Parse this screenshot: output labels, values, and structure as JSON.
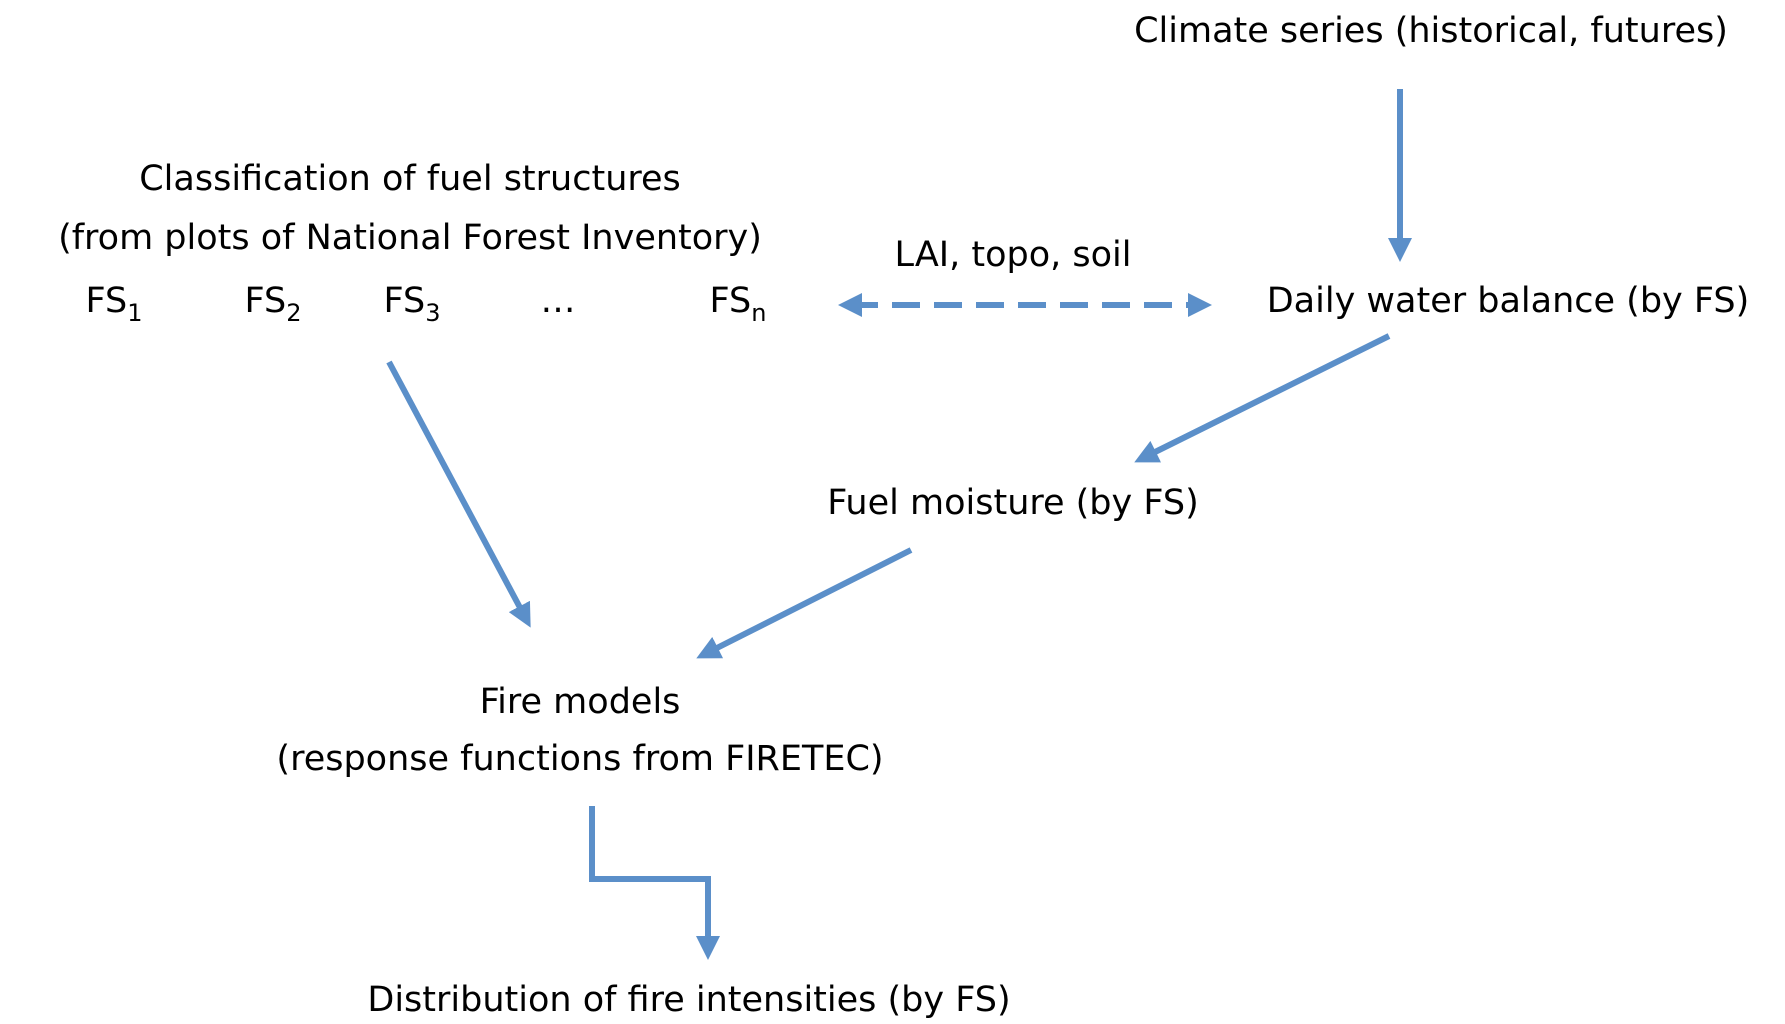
{
  "nodes": {
    "climate": {
      "label": "Climate series (historical, futures)"
    },
    "classification": {
      "title": "Classification of fuel structures",
      "subtitle": "(from plots of National Forest Inventory)",
      "items": [
        {
          "label": "FS",
          "subscript": "1"
        },
        {
          "label": "FS",
          "subscript": "2"
        },
        {
          "label": "FS",
          "subscript": "3"
        },
        {
          "label": "…"
        },
        {
          "label": "FS",
          "subscript": "n"
        }
      ]
    },
    "link_label": {
      "label": "LAI, topo,  soil"
    },
    "water_balance": {
      "label": "Daily water balance (by FS)"
    },
    "fuel_moisture": {
      "label": "Fuel moisture (by FS)"
    },
    "fire_models": {
      "title": "Fire models",
      "subtitle": "(response functions from FIRETEC)"
    },
    "distribution": {
      "label": "Distribution of fire intensities (by FS)"
    }
  }
}
